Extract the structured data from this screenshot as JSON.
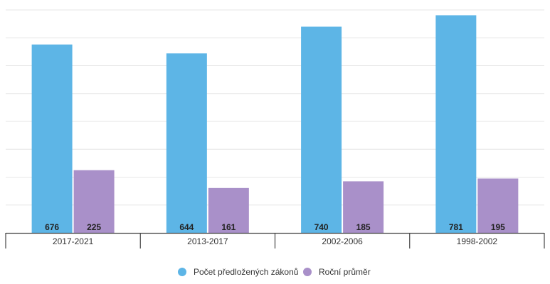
{
  "chart_data": {
    "type": "bar",
    "title": "",
    "xlabel": "",
    "ylabel": "",
    "categories": [
      "2017-2021",
      "2013-2017",
      "2002-2006",
      "1998-2002"
    ],
    "series": [
      {
        "name": "Počet předložených zákonů",
        "values": [
          676,
          644,
          740,
          781
        ],
        "color": "#5db5e6"
      },
      {
        "name": "Roční průměr",
        "values": [
          225,
          161,
          185,
          195
        ],
        "color": "#a990c9"
      }
    ],
    "ylim": [
      0,
      800
    ],
    "grid": true,
    "gridline_step": 100,
    "legend_position": "bottom-center",
    "data_labels": true
  }
}
